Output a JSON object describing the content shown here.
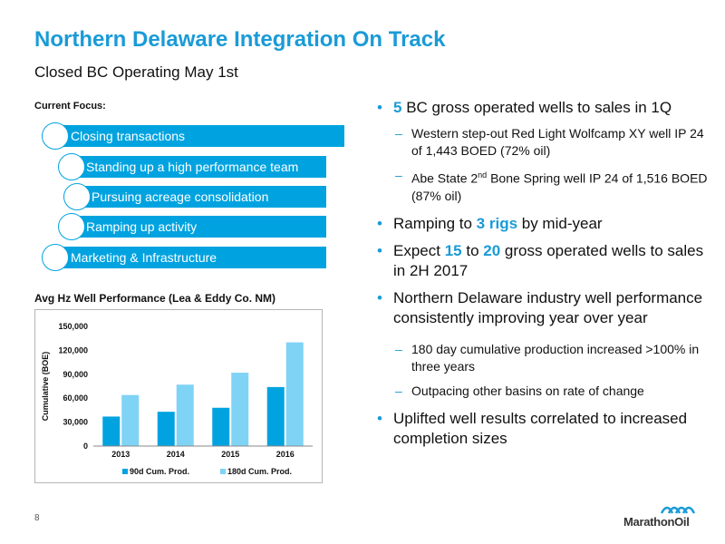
{
  "title": "Northern Delaware Integration On Track",
  "subtitle": "Closed BC Operating May 1st",
  "focus": {
    "label": "Current Focus:",
    "items": [
      "Closing transactions",
      "Standing up a high performance team",
      "Pursuing acreage consolidation",
      "Ramping up activity",
      "Marketing & Infrastructure"
    ]
  },
  "bullets": {
    "b1": {
      "bullet": "•",
      "num": "5",
      "text": " BC gross operated wells to sales in 1Q"
    },
    "b1_sub1": {
      "dash": "–",
      "text": "Western step-out Red Light Wolfcamp XY well IP 24 of 1,443 BOED (72% oil)"
    },
    "b1_sub2": {
      "dash": "–",
      "pre": "Abe State 2",
      "sup": "nd",
      "post": " Bone Spring well IP 24 of 1,516 BOED (87% oil)"
    },
    "b2": {
      "bullet": "•",
      "pre": "Ramping to ",
      "hl": "3 rigs",
      "post": " by mid-year"
    },
    "b3": {
      "bullet": "•",
      "pre": "Expect ",
      "hl1": "15",
      "mid": " to ",
      "hl2": "20",
      "post": " gross operated wells to sales in 2H 2017"
    },
    "b4": {
      "bullet": "•",
      "text": "Northern Delaware industry well performance consistently improving year over year"
    },
    "b4_sub1": {
      "dash": "–",
      "text": "180 day cumulative production increased >100% in three years"
    },
    "b4_sub2": {
      "dash": "–",
      "text": "Outpacing other basins on rate of change"
    },
    "b5": {
      "bullet": "•",
      "text": "Uplifted well results correlated to increased completion sizes"
    }
  },
  "page_number": "8",
  "logo_text": "MarathonOil",
  "colors": {
    "accent": "#1a9bd7",
    "series_dark": "#00a3e0",
    "series_light": "#7fd3f5"
  },
  "chart_data": {
    "type": "bar",
    "title": "Avg Hz Well Performance (Lea & Eddy Co. NM)",
    "xlabel": "",
    "ylabel": "Cumulative (BOE)",
    "categories": [
      "2013",
      "2014",
      "2015",
      "2016"
    ],
    "series": [
      {
        "name": "90d Cum. Prod.",
        "values": [
          37000,
          43000,
          48000,
          74000
        ]
      },
      {
        "name": "180d Cum. Prod.",
        "values": [
          64000,
          77000,
          92000,
          130000
        ]
      }
    ],
    "ylim": [
      0,
      150000
    ],
    "yticks": [
      0,
      30000,
      60000,
      90000,
      120000,
      150000
    ],
    "ytick_labels": [
      "0",
      "30,000",
      "60,000",
      "90,000",
      "120,000",
      "150,000"
    ],
    "grid": false,
    "legend": "bottom"
  }
}
